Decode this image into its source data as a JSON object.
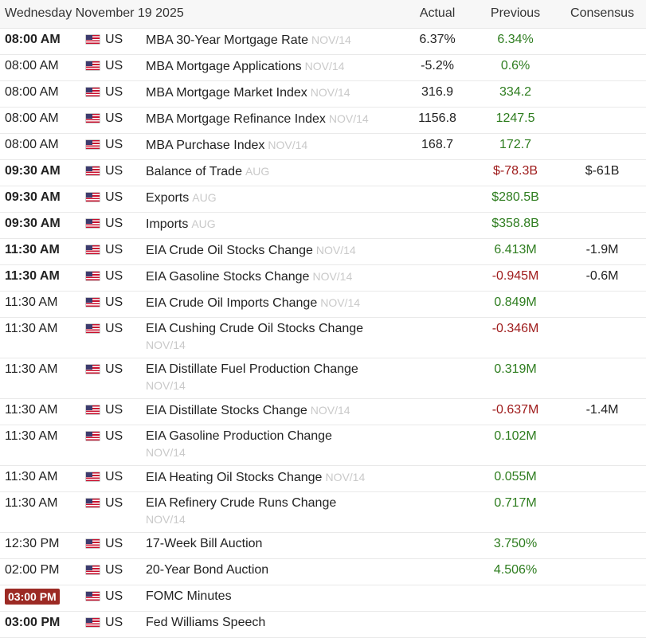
{
  "header": {
    "date": "Wednesday November 19 2025",
    "actual_label": "Actual",
    "previous_label": "Previous",
    "consensus_label": "Consensus"
  },
  "colors": {
    "positive": "#2e7d1f",
    "negative": "#9e1a1a",
    "highlight_badge": "#9c2a24"
  },
  "events": [
    {
      "time": "08:00 AM",
      "country": "US",
      "event": "MBA 30-Year Mortgage Rate",
      "reference": "NOV/14",
      "actual": "6.37%",
      "previous": "6.34%",
      "consensus": "",
      "bold": true,
      "highlight": false,
      "prev_color": "green",
      "wrap": false
    },
    {
      "time": "08:00 AM",
      "country": "US",
      "event": "MBA Mortgage Applications",
      "reference": "NOV/14",
      "actual": "-5.2%",
      "previous": "0.6%",
      "consensus": "",
      "bold": false,
      "highlight": false,
      "prev_color": "green",
      "wrap": false
    },
    {
      "time": "08:00 AM",
      "country": "US",
      "event": "MBA Mortgage Market Index",
      "reference": "NOV/14",
      "actual": "316.9",
      "previous": "334.2",
      "consensus": "",
      "bold": false,
      "highlight": false,
      "prev_color": "green",
      "wrap": false
    },
    {
      "time": "08:00 AM",
      "country": "US",
      "event": "MBA Mortgage Refinance Index",
      "reference": "NOV/14",
      "actual": "1156.8",
      "previous": "1247.5",
      "consensus": "",
      "bold": false,
      "highlight": false,
      "prev_color": "green",
      "wrap": false
    },
    {
      "time": "08:00 AM",
      "country": "US",
      "event": "MBA Purchase Index",
      "reference": "NOV/14",
      "actual": "168.7",
      "previous": "172.7",
      "consensus": "",
      "bold": false,
      "highlight": false,
      "prev_color": "green",
      "wrap": false
    },
    {
      "time": "09:30 AM",
      "country": "US",
      "event": "Balance of Trade",
      "reference": "AUG",
      "actual": "",
      "previous": "$-78.3B",
      "consensus": "$-61B",
      "bold": true,
      "highlight": false,
      "prev_color": "red",
      "wrap": false
    },
    {
      "time": "09:30 AM",
      "country": "US",
      "event": "Exports",
      "reference": "AUG",
      "actual": "",
      "previous": "$280.5B",
      "consensus": "",
      "bold": true,
      "highlight": false,
      "prev_color": "green",
      "wrap": false
    },
    {
      "time": "09:30 AM",
      "country": "US",
      "event": "Imports",
      "reference": "AUG",
      "actual": "",
      "previous": "$358.8B",
      "consensus": "",
      "bold": true,
      "highlight": false,
      "prev_color": "green",
      "wrap": false
    },
    {
      "time": "11:30 AM",
      "country": "US",
      "event": "EIA Crude Oil Stocks Change",
      "reference": "NOV/14",
      "actual": "",
      "previous": "6.413M",
      "consensus": "-1.9M",
      "bold": true,
      "highlight": false,
      "prev_color": "green",
      "wrap": false
    },
    {
      "time": "11:30 AM",
      "country": "US",
      "event": "EIA Gasoline Stocks Change",
      "reference": "NOV/14",
      "actual": "",
      "previous": "-0.945M",
      "consensus": "-0.6M",
      "bold": true,
      "highlight": false,
      "prev_color": "red",
      "wrap": false
    },
    {
      "time": "11:30 AM",
      "country": "US",
      "event": "EIA Crude Oil Imports Change",
      "reference": "NOV/14",
      "actual": "",
      "previous": "0.849M",
      "consensus": "",
      "bold": false,
      "highlight": false,
      "prev_color": "green",
      "wrap": false
    },
    {
      "time": "11:30 AM",
      "country": "US",
      "event": "EIA Cushing Crude Oil Stocks Change",
      "reference": "NOV/14",
      "actual": "",
      "previous": "-0.346M",
      "consensus": "",
      "bold": false,
      "highlight": false,
      "prev_color": "red",
      "wrap": true
    },
    {
      "time": "11:30 AM",
      "country": "US",
      "event": "EIA Distillate Fuel Production Change",
      "reference": "NOV/14",
      "actual": "",
      "previous": "0.319M",
      "consensus": "",
      "bold": false,
      "highlight": false,
      "prev_color": "green",
      "wrap": true
    },
    {
      "time": "11:30 AM",
      "country": "US",
      "event": "EIA Distillate Stocks Change",
      "reference": "NOV/14",
      "actual": "",
      "previous": "-0.637M",
      "consensus": "-1.4M",
      "bold": false,
      "highlight": false,
      "prev_color": "red",
      "wrap": false
    },
    {
      "time": "11:30 AM",
      "country": "US",
      "event": "EIA Gasoline Production Change",
      "reference": "NOV/14",
      "actual": "",
      "previous": "0.102M",
      "consensus": "",
      "bold": false,
      "highlight": false,
      "prev_color": "green",
      "wrap": true
    },
    {
      "time": "11:30 AM",
      "country": "US",
      "event": "EIA Heating Oil Stocks Change",
      "reference": "NOV/14",
      "actual": "",
      "previous": "0.055M",
      "consensus": "",
      "bold": false,
      "highlight": false,
      "prev_color": "green",
      "wrap": false
    },
    {
      "time": "11:30 AM",
      "country": "US",
      "event": "EIA Refinery Crude Runs Change",
      "reference": "NOV/14",
      "actual": "",
      "previous": "0.717M",
      "consensus": "",
      "bold": false,
      "highlight": false,
      "prev_color": "green",
      "wrap": true
    },
    {
      "time": "12:30 PM",
      "country": "US",
      "event": "17-Week Bill Auction",
      "reference": "",
      "actual": "",
      "previous": "3.750%",
      "consensus": "",
      "bold": false,
      "highlight": false,
      "prev_color": "green",
      "wrap": false
    },
    {
      "time": "02:00 PM",
      "country": "US",
      "event": "20-Year Bond Auction",
      "reference": "",
      "actual": "",
      "previous": "4.506%",
      "consensus": "",
      "bold": false,
      "highlight": false,
      "prev_color": "green",
      "wrap": false
    },
    {
      "time": "03:00 PM",
      "country": "US",
      "event": "FOMC Minutes",
      "reference": "",
      "actual": "",
      "previous": "",
      "consensus": "",
      "bold": false,
      "highlight": true,
      "prev_color": "green",
      "wrap": false
    },
    {
      "time": "03:00 PM",
      "country": "US",
      "event": "Fed Williams Speech",
      "reference": "",
      "actual": "",
      "previous": "",
      "consensus": "",
      "bold": true,
      "highlight": false,
      "prev_color": "green",
      "wrap": false
    }
  ]
}
